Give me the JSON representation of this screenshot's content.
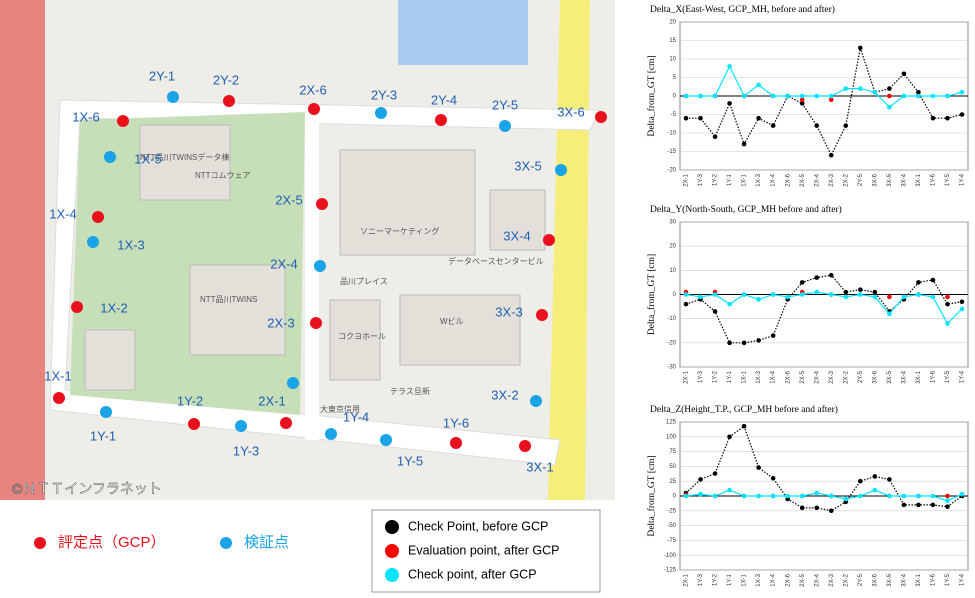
{
  "map": {
    "points": [
      {
        "label": "2Y-1",
        "kind": "check"
      },
      {
        "label": "2Y-2",
        "kind": "gcp"
      },
      {
        "label": "2X-6",
        "kind": "gcp"
      },
      {
        "label": "2Y-3",
        "kind": "check"
      },
      {
        "label": "2Y-4",
        "kind": "gcp"
      },
      {
        "label": "2Y-5",
        "kind": "check"
      },
      {
        "label": "3X-6",
        "kind": "gcp"
      },
      {
        "label": "1X-6",
        "kind": "gcp"
      },
      {
        "label": "1X-5",
        "kind": "check"
      },
      {
        "label": "3X-5",
        "kind": "check"
      },
      {
        "label": "2X-5",
        "kind": "gcp"
      },
      {
        "label": "1X-4",
        "kind": "gcp"
      },
      {
        "label": "1X-3",
        "kind": "check"
      },
      {
        "label": "3X-4",
        "kind": "gcp"
      },
      {
        "label": "2X-4",
        "kind": "check"
      },
      {
        "label": "1X-2",
        "kind": "gcp"
      },
      {
        "label": "3X-3",
        "kind": "gcp"
      },
      {
        "label": "2X-3",
        "kind": "gcp"
      },
      {
        "label": "1X-1",
        "kind": "gcp"
      },
      {
        "label": null,
        "kind": "check"
      },
      {
        "label": "1Y-2",
        "kind": "gcp"
      },
      {
        "label": "2X-1",
        "kind": "gcp"
      },
      {
        "label": "3X-2",
        "kind": "check"
      },
      {
        "label": "1Y-1",
        "kind": "check"
      },
      {
        "label": "1Y-3",
        "kind": "check"
      },
      {
        "label": "1Y-4",
        "kind": "check"
      },
      {
        "label": "1Y-6",
        "kind": "gcp"
      },
      {
        "label": "1Y-5",
        "kind": "check"
      },
      {
        "label": "3X-1",
        "kind": "gcp"
      }
    ],
    "place_labels": [
      "NTT品川TWINSデータ棟",
      "NTTコムウェア",
      "ソニーマーケティング",
      "品川プレイス",
      "コクヨホール",
      "データベースセンタービル",
      "Wビル",
      "NTT品川TWINS",
      "テラス旦新",
      "大東京信用"
    ],
    "copyright": "©ＮＴＴインフラネット",
    "legend": [
      {
        "label": "評定点（GCP）",
        "color": "#e8101c"
      },
      {
        "label": "検証点",
        "color": "#1aa3e6"
      }
    ]
  },
  "chart_data": [
    {
      "type": "line",
      "title": "Delta_X(East-West, GCP_MH, before and after)",
      "y_label": "Delta_from_GT [cm]",
      "categories": [
        "2X-1",
        "1Y-3",
        "1Y-2",
        "1Y-1",
        "1X-1",
        "1X-3",
        "1X-4",
        "2X-6",
        "2X-5",
        "2X-4",
        "2X-3",
        "2X-2",
        "2Y-5",
        "3X-6",
        "3X-5",
        "3X-4",
        "3X-1",
        "1Y-6",
        "1Y-5",
        "1Y-4"
      ],
      "ylim": [
        -20,
        20
      ],
      "yticks": [
        -20,
        -15,
        -10,
        -5,
        0,
        5,
        10,
        15,
        20
      ],
      "grid": true,
      "series": [
        {
          "name": "Check Point, before GCP",
          "color": "#000000",
          "style": "dotted",
          "values": [
            -6,
            -6,
            -11,
            -2,
            -13,
            -6,
            -8,
            0,
            -2,
            -8,
            -16,
            -8,
            13,
            1,
            2,
            6,
            1,
            -6,
            -6,
            -5
          ]
        },
        {
          "name": "Evaluation point, after GCP",
          "color": "#ff0000",
          "style": "none",
          "values": [
            0,
            null,
            0,
            null,
            0,
            null,
            0,
            null,
            -1,
            null,
            -1,
            null,
            null,
            null,
            0,
            null,
            0,
            null,
            0,
            null
          ]
        },
        {
          "name": "Check point, after GCP",
          "color": "#00e5ff",
          "style": "solid",
          "values": [
            0,
            0,
            0,
            8,
            0,
            3,
            0,
            0,
            0,
            0,
            0,
            2,
            2,
            1,
            -3,
            0,
            0,
            0,
            0,
            1
          ]
        }
      ]
    },
    {
      "type": "line",
      "title": "Delta_Y(North-South, GCP_MH before and after)",
      "y_label": "Delta_from_GT [cm]",
      "categories": [
        "2X-1",
        "1Y-3",
        "1Y-2",
        "1Y-1",
        "1X-1",
        "1X-3",
        "1X-4",
        "2X-6",
        "2X-5",
        "2X-4",
        "2X-3",
        "2X-2",
        "2Y-5",
        "3X-6",
        "3X-5",
        "3X-4",
        "3X-1",
        "1Y-6",
        "1Y-5",
        "1Y-4"
      ],
      "ylim": [
        -30,
        30
      ],
      "yticks": [
        -30,
        -20,
        -10,
        0,
        10,
        20,
        30
      ],
      "grid": true,
      "series": [
        {
          "color": "#000000",
          "style": "dotted",
          "values": [
            -4,
            -2,
            -7,
            -20,
            -20,
            -19,
            -17,
            -2,
            5,
            7,
            8,
            1,
            2,
            1,
            -7,
            -2,
            5,
            6,
            -4,
            -3
          ]
        },
        {
          "color": "#ff0000",
          "style": "none",
          "values": [
            1,
            null,
            1,
            null,
            0,
            null,
            0,
            null,
            1,
            null,
            0,
            null,
            null,
            null,
            -1,
            null,
            0,
            null,
            -1,
            null
          ]
        },
        {
          "color": "#00e5ff",
          "style": "solid",
          "values": [
            0,
            -1,
            0,
            -4,
            0,
            -2,
            0,
            -1,
            0,
            1,
            0,
            -1,
            0,
            -1,
            -8,
            -1,
            0,
            -1,
            -12,
            -6
          ]
        }
      ]
    },
    {
      "type": "line",
      "title": "Delta_Z(Height_T.P., GCP_MH before and after)",
      "y_label": "Delta_from_GT [cm]",
      "categories": [
        "2X-1",
        "1Y-3",
        "1Y-2",
        "1Y-1",
        "1X-1",
        "1X-3",
        "1X-4",
        "2X-6",
        "2X-5",
        "2X-4",
        "2X-3",
        "2X-2",
        "2Y-5",
        "3X-6",
        "3X-5",
        "3X-4",
        "3X-1",
        "1Y-6",
        "1Y-5",
        "1Y-4"
      ],
      "ylim": [
        -125,
        125
      ],
      "yticks": [
        -125,
        -100,
        -75,
        -50,
        -25,
        0,
        25,
        50,
        75,
        100,
        125
      ],
      "grid": true,
      "series": [
        {
          "color": "#000000",
          "style": "dotted",
          "values": [
            5,
            28,
            38,
            100,
            118,
            48,
            30,
            -5,
            -20,
            -20,
            -25,
            -10,
            25,
            33,
            28,
            -15,
            -15,
            -15,
            -18,
            0
          ]
        },
        {
          "color": "#ff0000",
          "style": "none",
          "values": [
            2,
            null,
            0,
            null,
            0,
            null,
            0,
            null,
            0,
            null,
            0,
            null,
            null,
            null,
            0,
            null,
            0,
            null,
            0,
            null
          ]
        },
        {
          "color": "#00e5ff",
          "style": "solid",
          "values": [
            0,
            3,
            0,
            10,
            0,
            0,
            0,
            0,
            0,
            5,
            0,
            -5,
            0,
            10,
            0,
            0,
            0,
            0,
            -8,
            3
          ]
        }
      ]
    }
  ]
}
